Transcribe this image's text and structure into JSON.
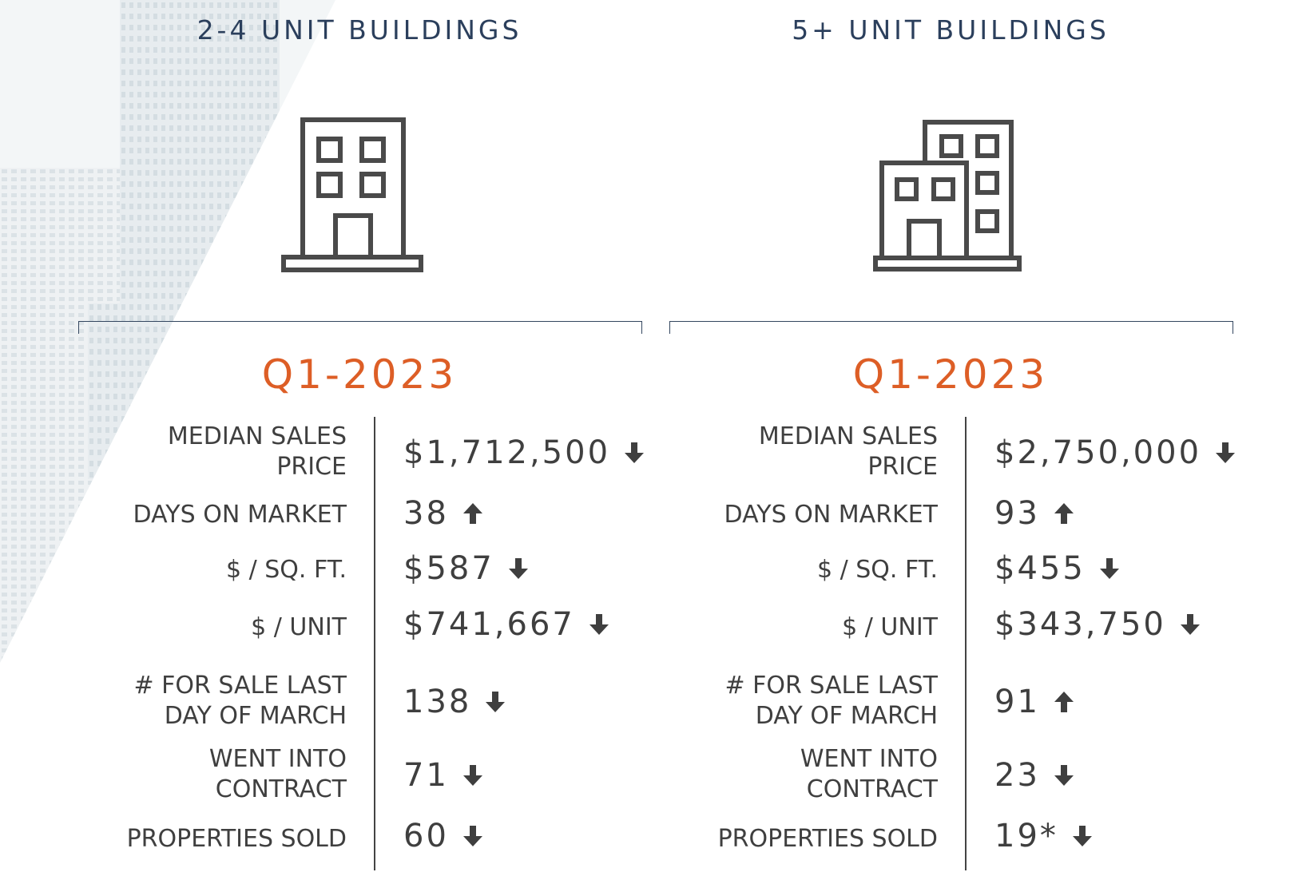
{
  "sections": [
    {
      "title": "2-4 UNIT BUILDINGS",
      "icon": "small-building-icon",
      "period": "Q1-2023",
      "metrics": [
        {
          "label": "MEDIAN SALES PRICE",
          "value": "$1,712,500",
          "trend": "down"
        },
        {
          "label": "DAYS ON MARKET",
          "value": "38",
          "trend": "up"
        },
        {
          "label": "$ / SQ. FT.",
          "value": "$587",
          "trend": "down"
        },
        {
          "label": "$ / UNIT",
          "value": "$741,667",
          "trend": "down"
        },
        {
          "label": "# FOR SALE LAST DAY OF MARCH",
          "value": "138",
          "trend": "down"
        },
        {
          "label": "WENT INTO CONTRACT",
          "value": "71",
          "trend": "down"
        },
        {
          "label": "PROPERTIES SOLD",
          "value": "60",
          "trend": "down"
        }
      ]
    },
    {
      "title": "5+ UNIT BUILDINGS",
      "icon": "large-building-icon",
      "period": "Q1-2023",
      "metrics": [
        {
          "label": "MEDIAN SALES PRICE",
          "value": "$2,750,000",
          "trend": "down"
        },
        {
          "label": "DAYS ON MARKET",
          "value": "93",
          "trend": "up"
        },
        {
          "label": "$ / SQ. FT.",
          "value": "$455",
          "trend": "down"
        },
        {
          "label": "$ / UNIT",
          "value": "$343,750",
          "trend": "down"
        },
        {
          "label": "# FOR SALE LAST DAY OF MARCH",
          "value": "91",
          "trend": "up"
        },
        {
          "label": "WENT INTO CONTRACT",
          "value": "23",
          "trend": "down"
        },
        {
          "label": "PROPERTIES SOLD",
          "value": "19*",
          "trend": "down"
        }
      ]
    }
  ],
  "colors": {
    "title": "#2b3f5c",
    "accent": "#dd5e26",
    "text": "#3f3f3f",
    "icon": "#4a4a4a"
  }
}
